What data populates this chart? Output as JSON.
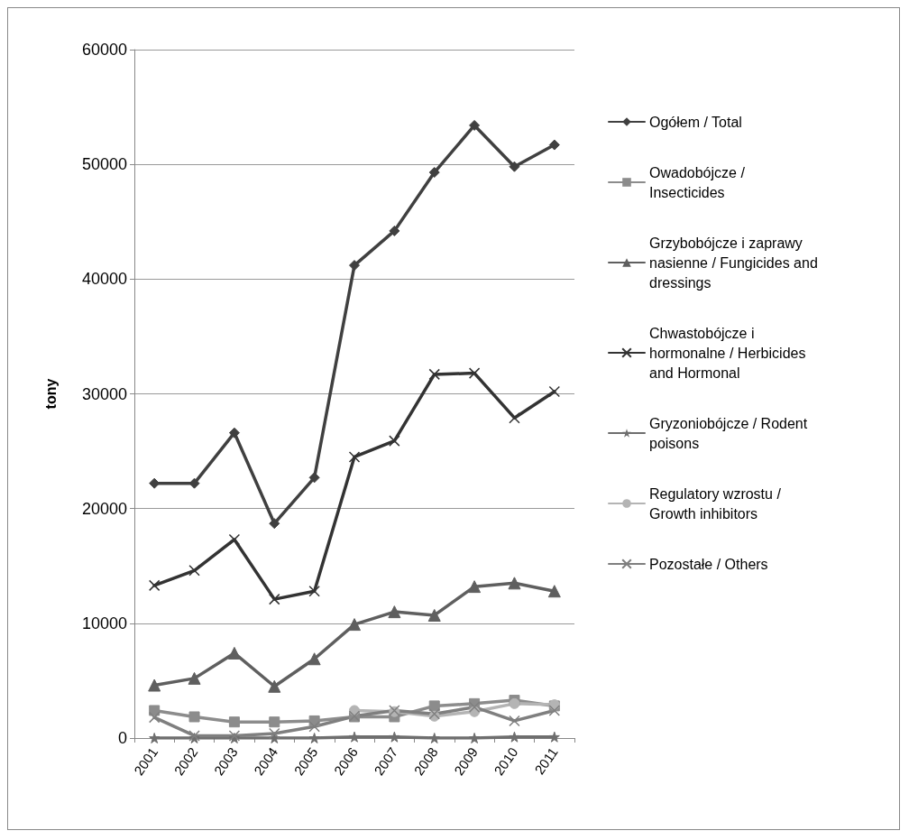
{
  "chart_data": {
    "type": "line",
    "ylabel": "tony",
    "categories": [
      "2001",
      "2002",
      "2003",
      "2004",
      "2005",
      "2006",
      "2007",
      "2008",
      "2009",
      "2010",
      "2011"
    ],
    "ylim": [
      0,
      60000
    ],
    "yticks": [
      0,
      10000,
      20000,
      30000,
      40000,
      50000,
      60000
    ],
    "grid": "y",
    "legend": "right",
    "line_style": "solid",
    "series": [
      {
        "name": "Ogółem / Total",
        "color": "#404040",
        "marker": "diamond",
        "values": [
          22200,
          22200,
          26600,
          18700,
          22700,
          41200,
          44200,
          49300,
          53400,
          49800,
          51700
        ]
      },
      {
        "name": "Owadobójcze / Insecticides",
        "color": "#8c8c8c",
        "marker": "square",
        "values": [
          2400,
          1850,
          1400,
          1400,
          1500,
          1850,
          1850,
          2800,
          3000,
          3300,
          2800
        ]
      },
      {
        "name": "Grzybobójcze i zaprawy nasienne / Fungicides and dressings",
        "color": "#5f5f5f",
        "marker": "triangle",
        "values": [
          4600,
          5200,
          7400,
          4500,
          6900,
          9900,
          11000,
          10700,
          13200,
          13500,
          12800
        ]
      },
      {
        "name": "Chwastobójcze i hormonalne / Herbicides and Hormonal",
        "color": "#333333",
        "marker": "cross",
        "values": [
          13300,
          14600,
          17300,
          12100,
          12800,
          24500,
          25900,
          31700,
          31800,
          27900,
          30200
        ]
      },
      {
        "name": "Gryzoniobójcze / Rodent poisons",
        "color": "#6e6e6e",
        "marker": "star",
        "values": [
          0,
          0,
          0,
          0,
          0,
          100,
          100,
          0,
          0,
          100,
          100
        ]
      },
      {
        "name": "Regulatory wzrostu / Growth inhibitors",
        "color": "#b4b4b4",
        "marker": "circle",
        "values": [
          null,
          null,
          null,
          null,
          null,
          2400,
          2300,
          1900,
          2300,
          3000,
          2900
        ]
      },
      {
        "name": "Pozostałe / Others",
        "color": "#7f7f7f",
        "marker": "cross",
        "values": [
          1800,
          200,
          200,
          400,
          1000,
          1900,
          2400,
          2100,
          2700,
          1500,
          2400
        ]
      }
    ]
  }
}
